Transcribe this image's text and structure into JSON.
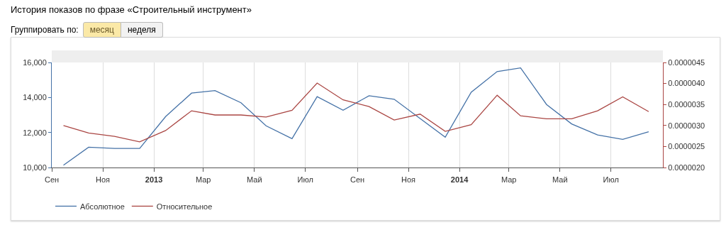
{
  "chart_data": {
    "type": "line",
    "title": "История показов по фразе «Строительный инструмент»",
    "annotations": [
      "Группировать по:",
      "месяц",
      "неделя"
    ],
    "x": [
      "2012-09-15",
      "2012-10-15",
      "2012-11-15",
      "2012-12-15",
      "2013-01-15",
      "2013-02-15",
      "2013-03-15",
      "2013-04-15",
      "2013-05-15",
      "2013-06-15",
      "2013-07-15",
      "2013-08-15",
      "2013-09-15",
      "2013-10-15",
      "2013-11-15",
      "2013-12-15",
      "2014-01-15",
      "2014-02-15",
      "2014-03-15",
      "2014-04-15",
      "2014-05-15",
      "2014-06-15",
      "2014-07-15",
      "2014-08-15"
    ],
    "series": [
      {
        "name": "Абсолютное",
        "color": "#4572a7",
        "values": [
          10130,
          11160,
          11090,
          11090,
          12910,
          14250,
          14390,
          13700,
          12380,
          11650,
          14050,
          13270,
          14100,
          13900,
          12800,
          11730,
          14300,
          15480,
          15690,
          13600,
          12490,
          11860,
          11610,
          12040
        ]
      },
      {
        "name": "Относительное",
        "color": "#aa4643",
        "axis": "y2",
        "values": [
          3e-06,
          2.82e-06,
          2.74e-06,
          2.61e-06,
          2.88e-06,
          3.35e-06,
          3.25e-06,
          3.25e-06,
          3.2e-06,
          3.36e-06,
          4.01e-06,
          3.61e-06,
          3.45e-06,
          3.13e-06,
          3.27e-06,
          2.86e-06,
          3.02e-06,
          3.72e-06,
          3.23e-06,
          3.16e-06,
          3.16e-06,
          3.35e-06,
          3.68e-06,
          3.33e-06
        ]
      }
    ],
    "xlim": [
      "2012-09-01",
      "2014-09-01"
    ],
    "xticks": [
      {
        "value": "2012-09-01",
        "label": "Сен"
      },
      {
        "value": "2012-11-01",
        "label": "Ноя"
      },
      {
        "value": "2013-01-01",
        "label": "2013"
      },
      {
        "value": "2013-03-01",
        "label": "Мар"
      },
      {
        "value": "2013-05-01",
        "label": "Май"
      },
      {
        "value": "2013-07-01",
        "label": "Июл"
      },
      {
        "value": "2013-09-01",
        "label": "Сен"
      },
      {
        "value": "2013-11-01",
        "label": "Ноя"
      },
      {
        "value": "2014-01-01",
        "label": "2014"
      },
      {
        "value": "2014-03-01",
        "label": "Мар"
      },
      {
        "value": "2014-05-01",
        "label": "Май"
      },
      {
        "value": "2014-07-01",
        "label": "Июл"
      }
    ],
    "ylim": [
      10000,
      16000
    ],
    "yticks": [
      {
        "value": 10000,
        "label": "10,000"
      },
      {
        "value": 12000,
        "label": "12,000"
      },
      {
        "value": 14000,
        "label": "14,000"
      },
      {
        "value": 16000,
        "label": "16,000"
      }
    ],
    "y2lim": [
      2e-06,
      4.5e-06
    ],
    "y2ticks": [
      {
        "value": 2e-06,
        "label": "0.0000020"
      },
      {
        "value": 2.5e-06,
        "label": "0.0000025"
      },
      {
        "value": 3e-06,
        "label": "0.0000030"
      },
      {
        "value": 3.5e-06,
        "label": "0.0000035"
      },
      {
        "value": 4e-06,
        "label": "0.0000040"
      },
      {
        "value": 4.5e-06,
        "label": "0.0000045"
      }
    ],
    "grid": "x",
    "legend": "bottom left",
    "marker": "none",
    "line_style": "solid"
  }
}
